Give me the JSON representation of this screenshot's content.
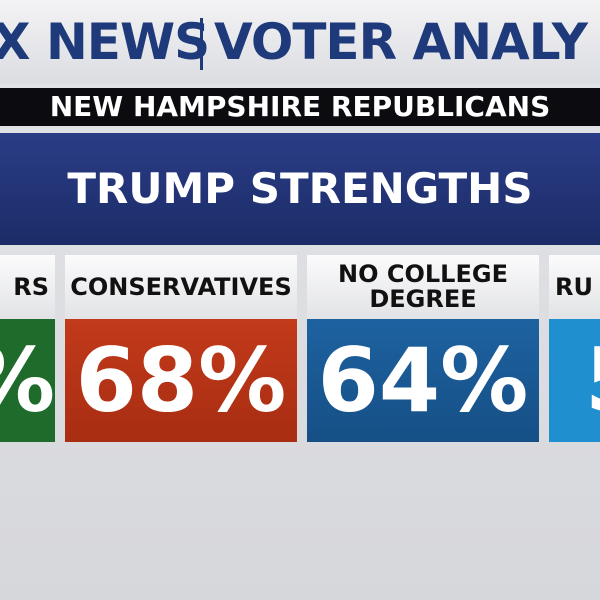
{
  "header": {
    "network": "X NEWS",
    "program": "VOTER ANALY"
  },
  "subtitle": "NEW HAMPSHIRE REPUBLICANS",
  "title": "TRUMP STRENGTHS",
  "cards": [
    {
      "label": "RS",
      "value": "%"
    },
    {
      "label": "CONSERVATIVES",
      "value": "68%"
    },
    {
      "label": "NO COLLEGE DEGREE",
      "value": "64%"
    },
    {
      "label": "RU",
      "value": "5"
    }
  ]
}
